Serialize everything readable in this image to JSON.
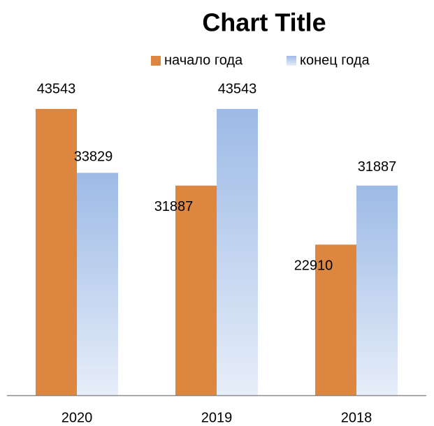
{
  "chart_data": {
    "type": "bar",
    "title": "Chart Title",
    "categories": [
      "2020",
      "2019",
      "2018"
    ],
    "series": [
      {
        "name": "начало года",
        "color": "#dd8640",
        "values": [
          43543,
          31887,
          22910
        ]
      },
      {
        "name": "конец года",
        "color": "#9dbae6",
        "values": [
          33829,
          43543,
          31887
        ]
      }
    ]
  }
}
